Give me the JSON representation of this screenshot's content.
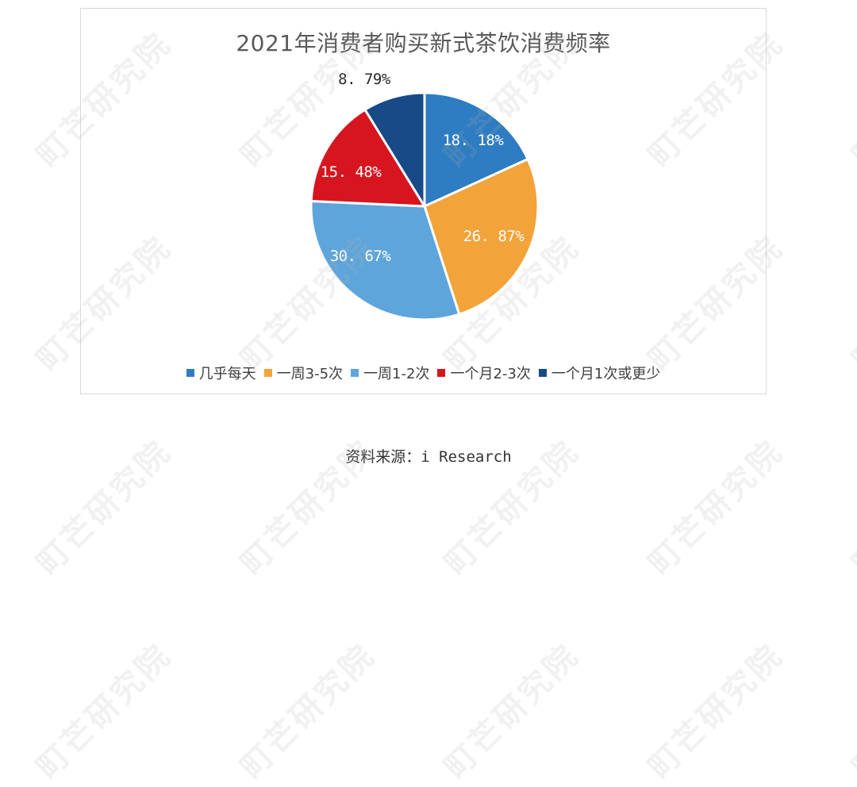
{
  "chart_data": {
    "type": "pie",
    "title": "2021年消费者购买新式茶饮消费频率",
    "categories": [
      "几乎每天",
      "一周3-5次",
      "一周1-2次",
      "一个月2-3次",
      "一个月1次或更少"
    ],
    "values": [
      18.18,
      26.87,
      30.67,
      15.48,
      8.79
    ],
    "labels": [
      "18.18%",
      "26.87%",
      "30.67%",
      "15.48%",
      "8.79%"
    ],
    "display_labels": [
      "18. 18%",
      "26. 87%",
      "30. 67%",
      "15. 48%",
      "8. 79%"
    ],
    "colors": [
      "#2E7CC1",
      "#F2A33A",
      "#5EA5DB",
      "#D7151F",
      "#174A86"
    ],
    "start_angle": "12 o'clock",
    "direction": "clockwise",
    "legend_position": "bottom",
    "unit": "%"
  },
  "legend": {
    "items": [
      {
        "label": "几乎每天",
        "color": "#2E7CC1"
      },
      {
        "label": "一周3-5次",
        "color": "#F2A33A"
      },
      {
        "label": "一周1-2次",
        "color": "#5EA5DB"
      },
      {
        "label": "一个月2-3次",
        "color": "#D7151F"
      },
      {
        "label": "一个月1次或更少",
        "color": "#174A86"
      }
    ]
  },
  "footer": {
    "source": "资料来源：i Research"
  },
  "watermark": {
    "text": "町芒研究院"
  }
}
